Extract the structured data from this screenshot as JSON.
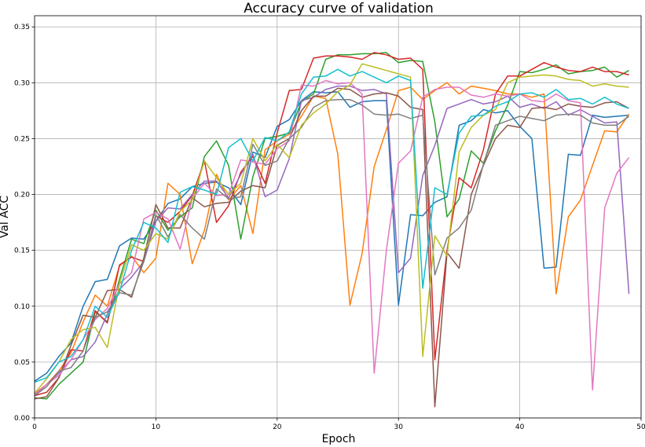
{
  "chart_data": {
    "type": "line",
    "title": "Accuracy curve of validation",
    "xlabel": "Epoch",
    "ylabel": "Val ACC",
    "xlim": [
      0,
      50
    ],
    "ylim": [
      0,
      0.36
    ],
    "xticks": [
      0,
      10,
      20,
      30,
      40,
      50
    ],
    "yticks": [
      0.0,
      0.05,
      0.1,
      0.15,
      0.2,
      0.25,
      0.3,
      0.35
    ],
    "xtick_labels": [
      "0",
      "10",
      "20",
      "30",
      "40",
      "50"
    ],
    "ytick_labels": [
      "0.00",
      "0.05",
      "0.10",
      "0.15",
      "0.20",
      "0.25",
      "0.30",
      "0.35"
    ],
    "grid": true,
    "x": [
      0,
      1,
      2,
      3,
      4,
      5,
      6,
      7,
      8,
      9,
      10,
      11,
      12,
      13,
      14,
      15,
      16,
      17,
      18,
      19,
      20,
      21,
      22,
      23,
      24,
      25,
      26,
      27,
      28,
      29,
      30,
      31,
      32,
      33,
      34,
      35,
      36,
      37,
      38,
      39,
      40,
      41,
      42,
      43,
      44,
      45,
      46,
      47,
      48,
      49
    ],
    "series": [
      {
        "color": "#1f77b4",
        "values": [
          0.033,
          0.04,
          0.055,
          0.067,
          0.1,
          0.122,
          0.124,
          0.154,
          0.161,
          0.16,
          0.176,
          0.192,
          0.196,
          0.207,
          0.21,
          0.211,
          0.206,
          0.191,
          0.238,
          0.233,
          0.261,
          0.267,
          0.284,
          0.292,
          0.291,
          0.292,
          0.278,
          0.283,
          0.284,
          0.284,
          0.101,
          0.182,
          0.181,
          0.193,
          0.198,
          0.262,
          0.266,
          0.276,
          0.273,
          0.275,
          0.261,
          0.25,
          0.134,
          0.135,
          0.236,
          0.235,
          0.271,
          0.269,
          0.27,
          0.271
        ]
      },
      {
        "color": "#ff7f0e",
        "values": [
          0.022,
          0.03,
          0.042,
          0.058,
          0.086,
          0.11,
          0.1,
          0.136,
          0.145,
          0.13,
          0.143,
          0.21,
          0.2,
          0.138,
          0.168,
          0.218,
          0.195,
          0.208,
          0.165,
          0.24,
          0.248,
          0.254,
          0.27,
          0.288,
          0.286,
          0.236,
          0.101,
          0.147,
          0.225,
          0.258,
          0.293,
          0.296,
          0.285,
          0.293,
          0.3,
          0.29,
          0.297,
          0.295,
          0.293,
          0.29,
          0.29,
          0.287,
          0.29,
          0.111,
          0.18,
          0.195,
          0.226,
          0.257,
          0.256,
          0.272
        ]
      },
      {
        "color": "#2ca02c",
        "values": [
          0.018,
          0.017,
          0.03,
          0.04,
          0.05,
          0.095,
          0.086,
          0.124,
          0.16,
          0.156,
          0.186,
          0.168,
          0.18,
          0.188,
          0.234,
          0.248,
          0.226,
          0.16,
          0.216,
          0.25,
          0.252,
          0.255,
          0.283,
          0.29,
          0.321,
          0.325,
          0.325,
          0.326,
          0.326,
          0.327,
          0.318,
          0.32,
          0.319,
          0.265,
          0.18,
          0.196,
          0.239,
          0.228,
          0.257,
          0.28,
          0.31,
          0.309,
          0.312,
          0.316,
          0.308,
          0.31,
          0.311,
          0.314,
          0.305,
          0.311
        ]
      },
      {
        "color": "#d62728",
        "values": [
          0.02,
          0.023,
          0.036,
          0.061,
          0.06,
          0.096,
          0.085,
          0.137,
          0.144,
          0.14,
          0.181,
          0.175,
          0.185,
          0.199,
          0.23,
          0.175,
          0.19,
          0.22,
          0.234,
          0.21,
          0.255,
          0.293,
          0.294,
          0.322,
          0.324,
          0.324,
          0.323,
          0.321,
          0.327,
          0.325,
          0.321,
          0.322,
          0.312,
          0.052,
          0.15,
          0.215,
          0.206,
          0.24,
          0.29,
          0.306,
          0.306,
          0.312,
          0.318,
          0.314,
          0.311,
          0.31,
          0.314,
          0.31,
          0.31,
          0.307
        ]
      },
      {
        "color": "#9467bd",
        "values": [
          0.02,
          0.03,
          0.04,
          0.052,
          0.055,
          0.068,
          0.093,
          0.115,
          0.126,
          0.14,
          0.176,
          0.188,
          0.187,
          0.2,
          0.212,
          0.212,
          0.197,
          0.218,
          0.236,
          0.198,
          0.204,
          0.232,
          0.284,
          0.287,
          0.294,
          0.297,
          0.297,
          0.293,
          0.294,
          0.29,
          0.13,
          0.143,
          0.217,
          0.244,
          0.277,
          0.281,
          0.285,
          0.281,
          0.283,
          0.288,
          0.278,
          0.281,
          0.277,
          0.283,
          0.271,
          0.276,
          0.27,
          0.264,
          0.265,
          0.111
        ]
      },
      {
        "color": "#8c564b",
        "values": [
          0.017,
          0.019,
          0.036,
          0.065,
          0.092,
          0.09,
          0.114,
          0.115,
          0.108,
          0.143,
          0.191,
          0.17,
          0.17,
          0.197,
          0.189,
          0.192,
          0.193,
          0.203,
          0.208,
          0.206,
          0.244,
          0.25,
          0.275,
          0.288,
          0.288,
          0.295,
          0.294,
          0.287,
          0.29,
          0.291,
          0.288,
          0.278,
          0.276,
          0.01,
          0.148,
          0.134,
          0.2,
          0.226,
          0.25,
          0.262,
          0.26,
          0.277,
          0.278,
          0.276,
          0.281,
          0.279,
          0.278,
          0.282,
          0.283,
          0.277
        ]
      },
      {
        "color": "#e377c2",
        "values": [
          0.021,
          0.03,
          0.038,
          0.052,
          0.07,
          0.088,
          0.098,
          0.12,
          0.13,
          0.178,
          0.184,
          0.178,
          0.151,
          0.196,
          0.21,
          0.199,
          0.2,
          0.231,
          0.229,
          0.227,
          0.241,
          0.248,
          0.298,
          0.297,
          0.302,
          0.299,
          0.3,
          0.29,
          0.04,
          0.15,
          0.228,
          0.239,
          0.287,
          0.294,
          0.296,
          0.296,
          0.289,
          0.287,
          0.29,
          0.288,
          0.29,
          0.284,
          0.283,
          0.29,
          0.284,
          0.282,
          0.025,
          0.188,
          0.219,
          0.233
        ]
      },
      {
        "color": "#7f7f7f",
        "values": [
          0.02,
          0.028,
          0.042,
          0.045,
          0.06,
          0.09,
          0.095,
          0.112,
          0.11,
          0.14,
          0.182,
          0.162,
          0.182,
          0.17,
          0.16,
          0.205,
          0.196,
          0.198,
          0.245,
          0.226,
          0.23,
          0.25,
          0.26,
          0.278,
          0.284,
          0.285,
          0.285,
          0.28,
          0.272,
          0.271,
          0.272,
          0.268,
          0.271,
          0.128,
          0.161,
          0.17,
          0.186,
          0.227,
          0.262,
          0.266,
          0.27,
          0.268,
          0.266,
          0.271,
          0.272,
          0.271,
          0.264,
          0.262,
          0.262,
          0.27
        ]
      },
      {
        "color": "#bcbd22",
        "values": [
          0.022,
          0.035,
          0.05,
          0.07,
          0.079,
          0.081,
          0.063,
          0.12,
          0.155,
          0.15,
          0.165,
          0.16,
          0.185,
          0.195,
          0.23,
          0.215,
          0.2,
          0.21,
          0.25,
          0.23,
          0.245,
          0.233,
          0.262,
          0.273,
          0.281,
          0.292,
          0.298,
          0.317,
          0.314,
          0.311,
          0.308,
          0.305,
          0.055,
          0.163,
          0.145,
          0.238,
          0.26,
          0.271,
          0.276,
          0.3,
          0.305,
          0.306,
          0.307,
          0.306,
          0.303,
          0.302,
          0.297,
          0.299,
          0.297,
          0.296
        ]
      },
      {
        "color": "#17becf",
        "values": [
          0.032,
          0.036,
          0.05,
          0.055,
          0.07,
          0.1,
          0.09,
          0.113,
          0.15,
          0.175,
          0.17,
          0.157,
          0.202,
          0.207,
          0.204,
          0.2,
          0.242,
          0.25,
          0.23,
          0.251,
          0.248,
          0.256,
          0.29,
          0.305,
          0.306,
          0.312,
          0.306,
          0.31,
          0.305,
          0.3,
          0.306,
          0.302,
          0.116,
          0.206,
          0.2,
          0.255,
          0.27,
          0.271,
          0.279,
          0.283,
          0.29,
          0.291,
          0.287,
          0.294,
          0.285,
          0.286,
          0.281,
          0.287,
          0.281,
          0.277
        ]
      }
    ]
  }
}
